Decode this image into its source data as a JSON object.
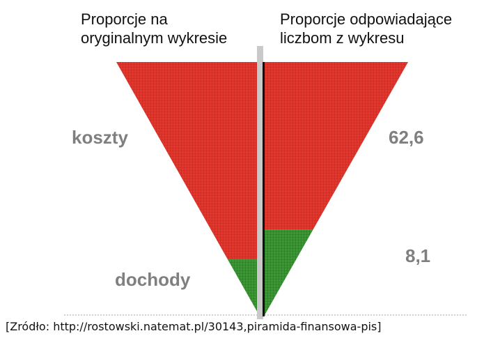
{
  "headers": {
    "left": [
      "Proporcje na",
      "oryginalnym wykresie"
    ],
    "right": [
      "Proporcje odpowiadające",
      "liczbom z wykresu"
    ]
  },
  "source": "[Zródło: http://rostowski.natemat.pl/30143,piramida-finansowa-pis]",
  "colors": {
    "top": "#e8352b",
    "bottom": "#3a9a31",
    "grid_top": "#b8251d",
    "grid_bottom": "#1f6b1c",
    "divider_gray": "#c9c9c9",
    "divider_black": "#111111",
    "label": "#7f7f7f"
  },
  "chart_data": [
    {
      "type": "area",
      "panel": "left",
      "title": "Proporcje na oryginalnym wykresie",
      "categories": [
        "koszty",
        "dochody"
      ],
      "height_fraction": [
        0.78,
        0.22
      ]
    },
    {
      "type": "area",
      "panel": "right",
      "title": "Proporcje odpowiadające liczbom z wykresu",
      "categories": [
        "koszty",
        "dochody"
      ],
      "values": [
        62.6,
        8.1
      ],
      "value_labels": [
        "62,6",
        "8,1"
      ]
    }
  ]
}
